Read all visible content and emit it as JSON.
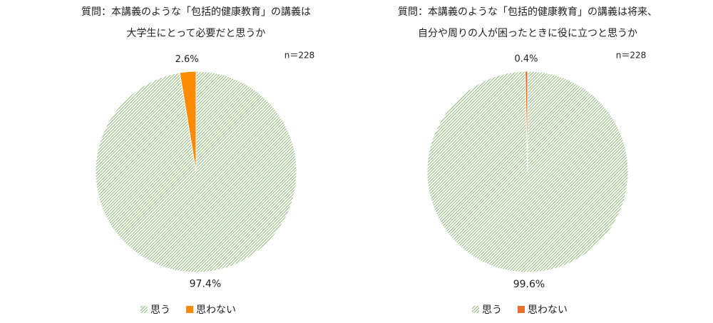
{
  "chart_data": [
    {
      "type": "pie",
      "title": [
        "質問：本講義のような「包括的健康教育」の講義は",
        "大学生にとって必要だと思うか"
      ],
      "annotation": "n＝228",
      "categories": [
        "思う",
        "思わない"
      ],
      "values": [
        97.4,
        2.6
      ],
      "value_labels": [
        "97.4%",
        "2.6%"
      ],
      "colors": [
        "#6aa84f",
        "#ff8c00"
      ],
      "hatch": [
        true,
        false
      ]
    },
    {
      "type": "pie",
      "title": [
        "質問：本講義のような「包括的健康教育」の講義は将来、",
        "自分や周りの人が困ったときに役に立つと思うか"
      ],
      "annotation": "n＝228",
      "categories": [
        "思う",
        "思わない"
      ],
      "values": [
        99.6,
        0.4
      ],
      "value_labels": [
        "99.6%",
        "0.4%"
      ],
      "colors": [
        "#6aa84f",
        "#e8702a"
      ],
      "hatch": [
        true,
        false
      ]
    }
  ]
}
